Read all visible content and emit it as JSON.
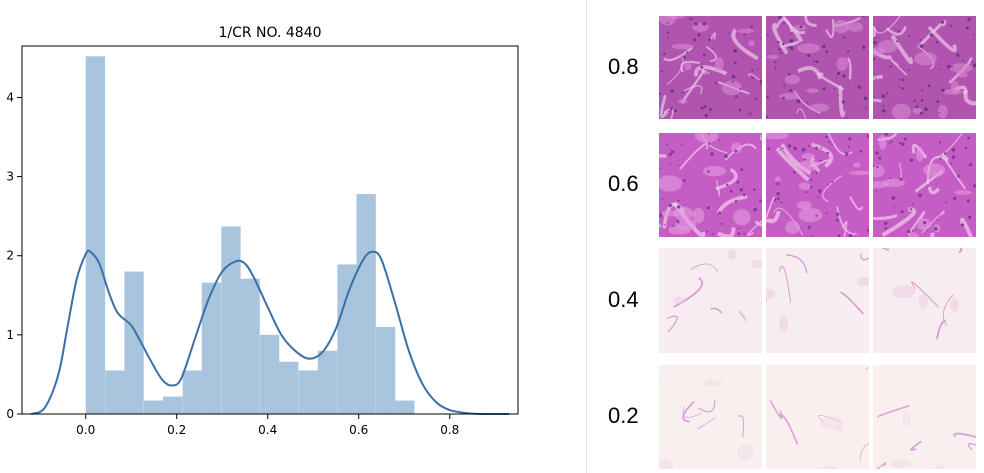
{
  "chart_data": {
    "type": "bar",
    "title": "1/CR NO. 4840",
    "xlabel": "",
    "ylabel": "",
    "xlim": [
      -0.14,
      0.95
    ],
    "ylim": [
      0,
      4.65
    ],
    "xticks": [
      "0.0",
      "0.2",
      "0.4",
      "0.6",
      "0.8"
    ],
    "yticks": [
      "0",
      "1",
      "2",
      "3",
      "4"
    ],
    "bin_width": 0.0425,
    "bins": [
      {
        "x0": 0.0,
        "value": 4.52
      },
      {
        "x0": 0.043,
        "value": 0.55
      },
      {
        "x0": 0.085,
        "value": 1.8
      },
      {
        "x0": 0.128,
        "value": 0.17
      },
      {
        "x0": 0.17,
        "value": 0.22
      },
      {
        "x0": 0.213,
        "value": 0.55
      },
      {
        "x0": 0.255,
        "value": 1.66
      },
      {
        "x0": 0.298,
        "value": 2.37
      },
      {
        "x0": 0.34,
        "value": 1.71
      },
      {
        "x0": 0.383,
        "value": 1.0
      },
      {
        "x0": 0.425,
        "value": 0.66
      },
      {
        "x0": 0.468,
        "value": 0.55
      },
      {
        "x0": 0.51,
        "value": 0.8
      },
      {
        "x0": 0.553,
        "value": 1.89
      },
      {
        "x0": 0.595,
        "value": 2.78
      },
      {
        "x0": 0.638,
        "value": 1.1
      },
      {
        "x0": 0.68,
        "value": 0.17
      }
    ],
    "kde": {
      "x": [
        -0.12,
        -0.09,
        -0.06,
        -0.04,
        -0.02,
        0.0,
        0.01,
        0.03,
        0.05,
        0.07,
        0.1,
        0.12,
        0.15,
        0.17,
        0.19,
        0.21,
        0.24,
        0.27,
        0.3,
        0.33,
        0.35,
        0.37,
        0.4,
        0.43,
        0.46,
        0.49,
        0.52,
        0.55,
        0.58,
        0.61,
        0.63,
        0.65,
        0.68,
        0.71,
        0.74,
        0.77,
        0.8,
        0.84,
        0.88,
        0.93
      ],
      "y": [
        0.0,
        0.08,
        0.5,
        1.1,
        1.7,
        2.02,
        2.05,
        1.9,
        1.55,
        1.28,
        1.12,
        0.92,
        0.6,
        0.42,
        0.36,
        0.45,
        0.95,
        1.45,
        1.8,
        1.93,
        1.9,
        1.72,
        1.35,
        1.0,
        0.8,
        0.7,
        0.78,
        1.08,
        1.58,
        1.95,
        2.05,
        1.95,
        1.4,
        0.8,
        0.38,
        0.15,
        0.05,
        0.01,
        0.0,
        0.0
      ]
    },
    "colors": {
      "bars": "#a9c5de",
      "kde": "#3a6fa8"
    },
    "grid": false,
    "legend": "none"
  },
  "panel": {
    "rows": [
      {
        "label": "0.8",
        "palette": [
          "#b054b0",
          "#d98bd2",
          "#f1c6ea",
          "#5b2d7a"
        ]
      },
      {
        "label": "0.6",
        "palette": [
          "#c55ec4",
          "#e39be0",
          "#f4cdef",
          "#6a3585"
        ]
      },
      {
        "label": "0.4",
        "palette": [
          "#f7ecef",
          "#edc8e2",
          "#d78fd0",
          "#fbf5ef"
        ]
      },
      {
        "label": "0.2",
        "palette": [
          "#f8efee",
          "#efd9e8",
          "#d99ad6",
          "#fcf7f2"
        ]
      }
    ]
  }
}
